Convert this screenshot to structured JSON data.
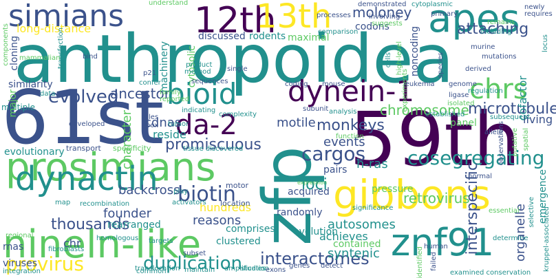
{
  "colors": {
    "background": "#ffffff",
    "palette": [
      "#440154",
      "#3b528b",
      "#21908d",
      "#5dc963",
      "#fde725"
    ]
  },
  "words": [
    {
      "text": "anthropoidea",
      "color": "#21908d"
    },
    {
      "text": "61st",
      "color": "#3b528b"
    },
    {
      "text": "59th",
      "color": "#440154"
    },
    {
      "text": "zfp",
      "color": "#21908d"
    },
    {
      "text": "prosimians",
      "color": "#5dc963"
    },
    {
      "text": "nineln-like",
      "color": "#5dc963"
    },
    {
      "text": "dynactin",
      "color": "#21908d"
    },
    {
      "text": "gibbons",
      "color": "#fde725"
    },
    {
      "text": "znf91",
      "color": "#21908d"
    },
    {
      "text": "simians",
      "color": "#3b528b"
    },
    {
      "text": "12th",
      "color": "#440154"
    },
    {
      "text": "13th",
      "color": "#fde725"
    },
    {
      "text": "apes",
      "color": "#21908d"
    },
    {
      "text": "bioid",
      "color": "#21908d"
    },
    {
      "text": "dynein-1",
      "color": "#440154"
    },
    {
      "text": "chrs",
      "color": "#5dc963"
    },
    {
      "text": "da-2",
      "color": "#440154"
    },
    {
      "text": "cosegregating",
      "color": "#21908d"
    },
    {
      "text": "cargos",
      "color": "#3b528b"
    },
    {
      "text": "biotin",
      "color": "#3b528b"
    },
    {
      "text": "interactomes",
      "color": "#3b528b"
    },
    {
      "text": "duplication",
      "color": "#21908d"
    },
    {
      "text": "provirus",
      "color": "#fde725"
    },
    {
      "text": "moloney",
      "color": "#3b528b"
    },
    {
      "text": "attaching",
      "color": "#3b528b"
    },
    {
      "text": "long-distance",
      "color": "#fde725"
    },
    {
      "text": "promiscuous",
      "color": "#3b528b"
    },
    {
      "text": "monkeys",
      "color": "#3b528b"
    },
    {
      "text": "evolved",
      "color": "#3b528b"
    },
    {
      "text": "ancestor",
      "color": "#3b528b"
    },
    {
      "text": "microtubule",
      "color": "#3b528b"
    },
    {
      "text": "chromosome",
      "color": "#5dc963"
    },
    {
      "text": "retrovirus",
      "color": "#5dc963"
    },
    {
      "text": "interspecific",
      "color": "#3b528b"
    },
    {
      "text": "organelle",
      "color": "#3b528b"
    },
    {
      "text": "thousands",
      "color": "#3b528b"
    },
    {
      "text": "hundreds",
      "color": "#fde725"
    },
    {
      "text": "founder",
      "color": "#3b528b"
    },
    {
      "text": "backcross",
      "color": "#3b528b"
    },
    {
      "text": "reasons",
      "color": "#3b528b"
    },
    {
      "text": "autosomes",
      "color": "#21908d"
    },
    {
      "text": "syntenic",
      "color": "#21908d"
    },
    {
      "text": "achieves",
      "color": "#21908d"
    },
    {
      "text": "h-ras",
      "color": "#21908d"
    },
    {
      "text": "loci",
      "color": "#21908d"
    },
    {
      "text": "events",
      "color": "#3b528b"
    },
    {
      "text": "motile",
      "color": "#3b528b"
    },
    {
      "text": "cdnas",
      "color": "#3b528b"
    },
    {
      "text": "reside",
      "color": "#21908d"
    },
    {
      "text": "character",
      "color": "#5dc963"
    },
    {
      "text": "cofactor",
      "color": "#21908d"
    },
    {
      "text": "living",
      "color": "#3b528b"
    },
    {
      "text": "rearranged",
      "color": "#21908d"
    },
    {
      "text": "clustered",
      "color": "#21908d"
    },
    {
      "text": "randomly",
      "color": "#3b528b"
    },
    {
      "text": "chr",
      "color": "#3b528b"
    },
    {
      "text": "rnas",
      "color": "#3b528b"
    },
    {
      "text": "viruses",
      "color": "#3b528b"
    },
    {
      "text": "evolutionary",
      "color": "#21908d"
    },
    {
      "text": "similarity",
      "color": "#3b528b"
    },
    {
      "text": "cloning",
      "color": "#3b528b"
    },
    {
      "text": "12th",
      "color": "#440154"
    },
    {
      "text": "discussed",
      "color": "#3b528b"
    },
    {
      "text": "rodents",
      "color": "#21908d"
    },
    {
      "text": "maximal",
      "color": "#5dc963"
    },
    {
      "text": "codons",
      "color": "#3b528b"
    },
    {
      "text": "noncoding",
      "color": "#3b528b"
    },
    {
      "text": "machinery",
      "color": "#21908d"
    },
    {
      "text": "cytosolic",
      "color": "#5dc963"
    },
    {
      "text": "panel",
      "color": "#5dc963"
    },
    {
      "text": "pressure",
      "color": "#5dc963"
    },
    {
      "text": "pairs",
      "color": "#3b528b"
    },
    {
      "text": "acquired",
      "color": "#3b528b"
    },
    {
      "text": "emergence",
      "color": "#21908d"
    },
    {
      "text": "evolution",
      "color": "#21908d"
    },
    {
      "text": "comprises",
      "color": "#21908d"
    },
    {
      "text": "contained",
      "color": "#5dc963"
    },
    {
      "text": "transport",
      "color": "#3b528b"
    },
    {
      "text": "specificity",
      "color": "#5dc963"
    },
    {
      "text": "motor",
      "color": "#3b528b"
    },
    {
      "text": "tissue discovered",
      "color": "#21908d"
    },
    {
      "text": "location",
      "color": "#3b528b"
    },
    {
      "text": "translocation",
      "color": "#21908d"
    },
    {
      "text": "amplification",
      "color": "#21908d"
    },
    {
      "text": "maintain",
      "color": "#21908d"
    },
    {
      "text": "integration",
      "color": "#21908d"
    },
    {
      "text": "fibroblasts",
      "color": "#21908d"
    },
    {
      "text": "regional",
      "color": "#5dc963"
    },
    {
      "text": "homologous",
      "color": "#21908d"
    },
    {
      "text": "recombination",
      "color": "#21908d"
    },
    {
      "text": "map",
      "color": "#21908d"
    },
    {
      "text": "activators",
      "color": "#21908d"
    },
    {
      "text": "play",
      "color": "#21908d"
    },
    {
      "text": "examined conservation",
      "color": "#21908d"
    },
    {
      "text": "significance",
      "color": "#21908d"
    },
    {
      "text": "essential",
      "color": "#5dc963"
    },
    {
      "text": "normal",
      "color": "#3b528b"
    },
    {
      "text": "allele",
      "color": "#3b528b"
    },
    {
      "text": "putative",
      "color": "#5dc963"
    },
    {
      "text": "spatial",
      "color": "#5dc963"
    },
    {
      "text": "subsequent",
      "color": "#21908d"
    },
    {
      "text": "established",
      "color": "#21908d"
    },
    {
      "text": "observations",
      "color": "#3b528b"
    },
    {
      "text": "ligase",
      "color": "#3b528b"
    },
    {
      "text": "isolated",
      "color": "#5dc963"
    },
    {
      "text": "genome",
      "color": "#3b528b"
    },
    {
      "text": "leukemia",
      "color": "#3b528b"
    },
    {
      "text": "mouse",
      "color": "#3b528b"
    },
    {
      "text": "coding",
      "color": "#3b528b"
    },
    {
      "text": "sequences",
      "color": "#3b528b"
    },
    {
      "text": "method",
      "color": "#21908d"
    },
    {
      "text": "product",
      "color": "#21908d"
    },
    {
      "text": "single",
      "color": "#3b528b"
    },
    {
      "text": "p21",
      "color": "#3b528b"
    },
    {
      "text": "confer",
      "color": "#21908d"
    },
    {
      "text": "transfection",
      "color": "#21908d"
    },
    {
      "text": "mammalian",
      "color": "#5dc963"
    },
    {
      "text": "components",
      "color": "#5dc963"
    },
    {
      "text": "bind",
      "color": "#3b528b"
    },
    {
      "text": "data",
      "color": "#21908d"
    },
    {
      "text": "multiple",
      "color": "#21908d"
    },
    {
      "text": "major",
      "color": "#5dc963"
    },
    {
      "text": "developed",
      "color": "#3b528b"
    },
    {
      "text": "roles",
      "color": "#3b528b"
    },
    {
      "text": "box",
      "color": "#3b528b"
    },
    {
      "text": "tumor",
      "color": "#21908d"
    },
    {
      "text": "indicating",
      "color": "#21908d"
    },
    {
      "text": "complexity",
      "color": "#21908d"
    },
    {
      "text": "subunit",
      "color": "#3b528b"
    },
    {
      "text": "analysis",
      "color": "#21908d"
    },
    {
      "text": "function",
      "color": "#5dc963"
    },
    {
      "text": "reported",
      "color": "#5dc963"
    },
    {
      "text": "family",
      "color": "#5dc963"
    },
    {
      "text": "comparison",
      "color": "#21908d"
    },
    {
      "text": "suggests",
      "color": "#5dc963"
    },
    {
      "text": "involving",
      "color": "#3b528b"
    },
    {
      "text": "primary",
      "color": "#3b528b"
    },
    {
      "text": "cytoplasmic",
      "color": "#21908d"
    },
    {
      "text": "processes",
      "color": "#3b528b"
    },
    {
      "text": "demonstrated",
      "color": "#3b528b"
    },
    {
      "text": "understand",
      "color": "#5dc963"
    },
    {
      "text": "common",
      "color": "#21908d"
    },
    {
      "text": "genes",
      "color": "#3b528b"
    },
    {
      "text": "detect",
      "color": "#3b528b"
    },
    {
      "text": "exons",
      "color": "#3b528b"
    },
    {
      "text": "human",
      "color": "#3b528b"
    },
    {
      "text": "failed",
      "color": "#3b528b"
    },
    {
      "text": "identified",
      "color": "#5dc963"
    },
    {
      "text": "determine",
      "color": "#21908d"
    },
    {
      "text": "studies",
      "color": "#21908d"
    },
    {
      "text": "targets",
      "color": "#21908d"
    },
    {
      "text": "subset",
      "color": "#3b528b"
    },
    {
      "text": "kruppel-associated",
      "color": "#21908d"
    },
    {
      "text": "selective",
      "color": "#21908d"
    },
    {
      "text": "locus",
      "color": "#21908d"
    },
    {
      "text": "species",
      "color": "#3b528b"
    },
    {
      "text": "mutations",
      "color": "#3b528b"
    },
    {
      "text": "murine",
      "color": "#3b528b"
    },
    {
      "text": "remains",
      "color": "#5dc963"
    },
    {
      "text": "including",
      "color": "#21908d"
    },
    {
      "text": "newly",
      "color": "#3b528b"
    },
    {
      "text": "requires",
      "color": "#3b528b"
    },
    {
      "text": "regulation",
      "color": "#21908d"
    },
    {
      "text": "derived",
      "color": "#3b528b"
    },
    {
      "text": "high-level",
      "color": "#5dc963"
    },
    {
      "text": "cells",
      "color": "#21908d"
    },
    {
      "text": "experiments",
      "color": "#5dc963"
    },
    {
      "text": "expression",
      "color": "#5dc963"
    }
  ]
}
